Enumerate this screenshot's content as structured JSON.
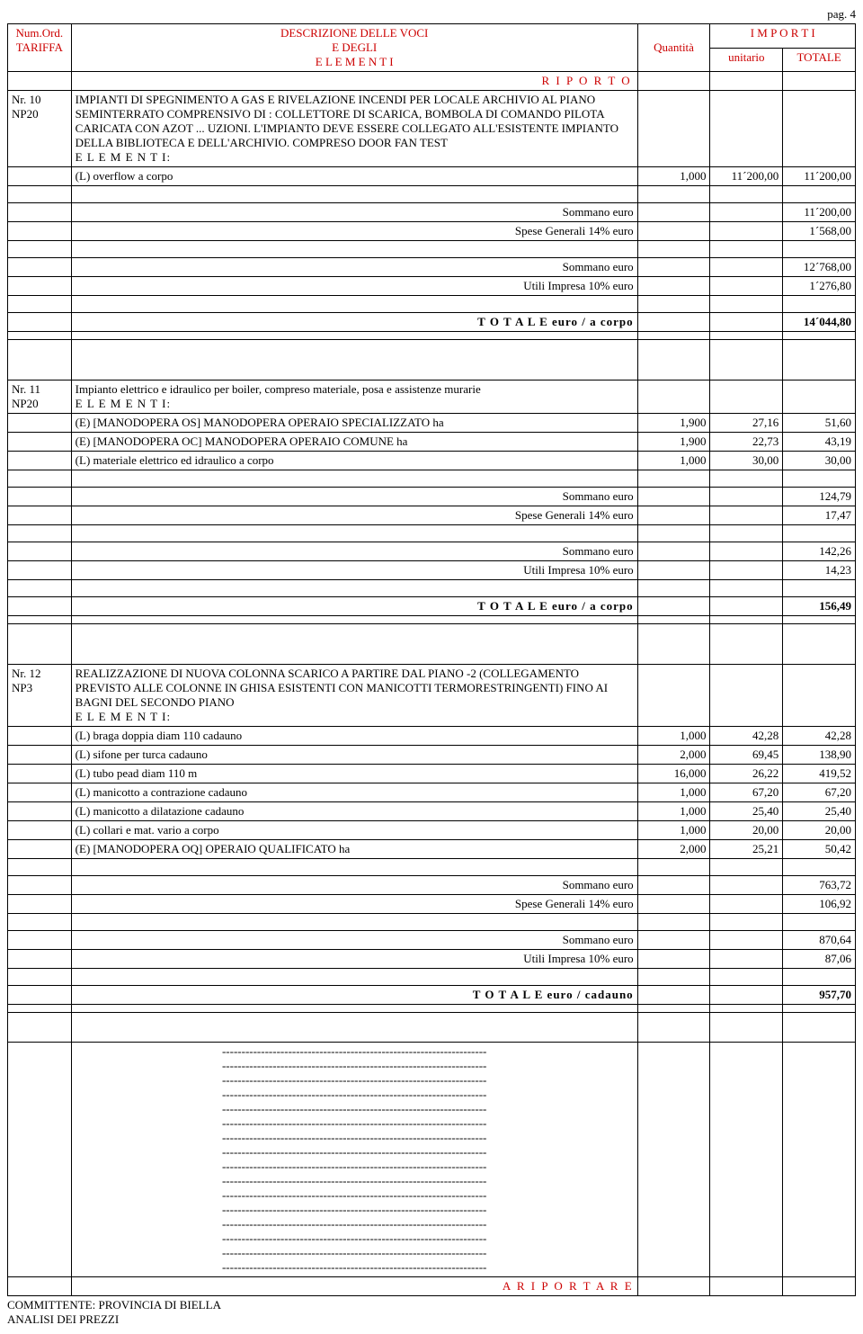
{
  "page_label": "pag. 4",
  "header": {
    "col1_line1": "Num.Ord.",
    "col1_line2": "TARIFFA",
    "col2_line1": "DESCRIZIONE DELLE VOCI",
    "col2_line2": "E DEGLI",
    "col2_line3": "E L E M E N T I",
    "col3": "Quantità",
    "col45_top": "I M P O R T I",
    "col4": "unitario",
    "col5": "TOTALE"
  },
  "riporto": "R I P O R T O",
  "riportare": "A   R I P O R T A R E",
  "labels": {
    "elementi": "E L E M E N T I:",
    "sommano": "Sommano euro",
    "spese": "Spese Generali 14% euro",
    "utili": "Utili Impresa 10% euro",
    "totale_corpo": "T O T A L E  euro / a corpo",
    "totale_cadauno": "T O T A L E  euro / cadauno"
  },
  "item10": {
    "ref": "Nr. 10",
    "code": "NP20",
    "desc1": "IMPIANTI  DI SPEGNIMENTO A GAS  E RIVELAZIONE INCENDI PER LOCALE ARCHIVIO AL PIANO",
    "desc2": "SEMINTERRATO COMPRENSIVO DI :  COLLETTORE DI SCARICA, BOMBOLA DI COMANDO PILOTA",
    "desc3": "CARICATA CON AZOT ... UZIONI. L'IMPIANTO DEVE ESSERE COLLEGATO ALL'ESISTENTE IMPIANTO",
    "desc4": "DELLA BIBLIOTECA E DELL'ARCHIVIO. COMPRESO DOOR FAN TEST",
    "line1": {
      "label": "(L)  overflow a corpo",
      "qty": "1,000",
      "unit": "11´200,00",
      "tot": "11´200,00"
    },
    "sommano1": "11´200,00",
    "spese": "1´568,00",
    "sommano2": "12´768,00",
    "utili": "1´276,80",
    "totale": "14´044,80"
  },
  "item11": {
    "ref": "Nr. 11",
    "code": "NP20",
    "desc1": "Impianto elettrico e idraulico per  boiler, compreso materiale, posa e assistenze murarie",
    "line1": {
      "label": "(E) [MANODOPERA OS] MANODOPERA OPERAIO SPECIALIZZATO ha",
      "qty": "1,900",
      "unit": "27,16",
      "tot": "51,60"
    },
    "line2": {
      "label": "(E) [MANODOPERA OC] MANODOPERA OPERAIO COMUNE ha",
      "qty": "1,900",
      "unit": "22,73",
      "tot": "43,19"
    },
    "line3": {
      "label": "(L)  materiale elettrico ed idraulico a corpo",
      "qty": "1,000",
      "unit": "30,00",
      "tot": "30,00"
    },
    "sommano1": "124,79",
    "spese": "17,47",
    "sommano2": "142,26",
    "utili": "14,23",
    "totale": "156,49"
  },
  "item12": {
    "ref": "Nr. 12",
    "code": "NP3",
    "desc1": "REALIZZAZIONE DI NUOVA COLONNA SCARICO A PARTIRE DAL PIANO -2 (COLLEGAMENTO",
    "desc2": "PREVISTO ALLE COLONNE IN GHISA ESISTENTI CON MANICOTTI TERMORESTRINGENTI) FINO AI",
    "desc3": "BAGNI DEL SECONDO PIANO",
    "line1": {
      "label": "(L)  braga doppia diam 110 cadauno",
      "qty": "1,000",
      "unit": "42,28",
      "tot": "42,28"
    },
    "line2": {
      "label": "(L)  sifone per turca cadauno",
      "qty": "2,000",
      "unit": "69,45",
      "tot": "138,90"
    },
    "line3": {
      "label": "(L)  tubo pead diam 110 m",
      "qty": "16,000",
      "unit": "26,22",
      "tot": "419,52"
    },
    "line4": {
      "label": "(L)  manicotto a contrazione cadauno",
      "qty": "1,000",
      "unit": "67,20",
      "tot": "67,20"
    },
    "line5": {
      "label": "(L)  manicotto a dilatazione cadauno",
      "qty": "1,000",
      "unit": "25,40",
      "tot": "25,40"
    },
    "line6": {
      "label": "(L)  collari e mat. vario a corpo",
      "qty": "1,000",
      "unit": "20,00",
      "tot": "20,00"
    },
    "line7": {
      "label": "(E) [MANODOPERA OQ] OPERAIO QUALIFICATO ha",
      "qty": "2,000",
      "unit": "25,21",
      "tot": "50,42"
    },
    "sommano1": "763,72",
    "spese": "106,92",
    "sommano2": "870,64",
    "utili": "87,06",
    "totale": "957,70"
  },
  "dash_line": "--------------------------------------------------------------------",
  "dash_count": 16,
  "footer": {
    "line1": "COMMITTENTE: PROVINCIA DI BIELLA",
    "line2": "ANALISI DEI PREZZI"
  }
}
